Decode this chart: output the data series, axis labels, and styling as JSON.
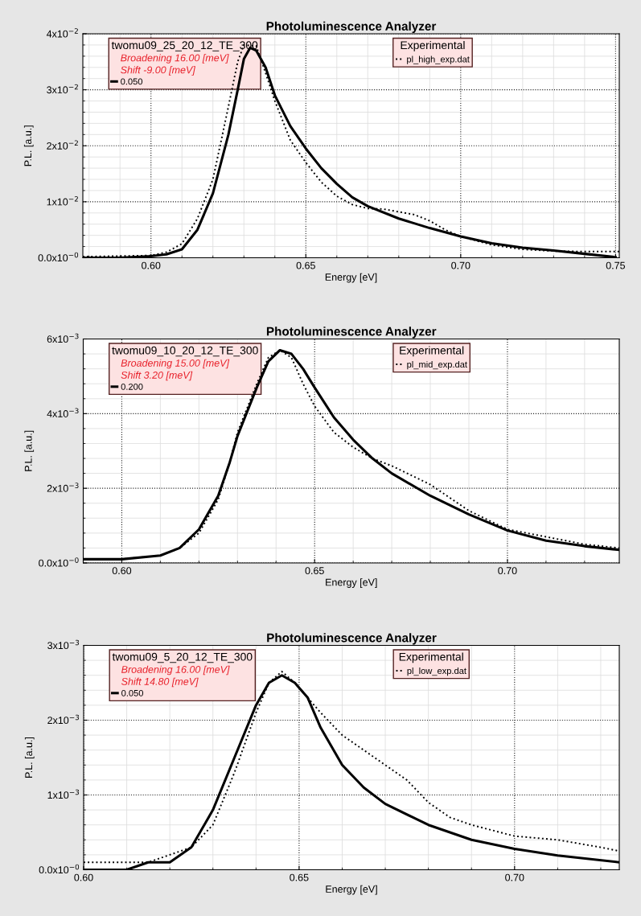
{
  "chart_data": [
    {
      "type": "line",
      "title": "Photoluminescence Analyzer",
      "xlabel": "Energy [eV]",
      "ylabel": "P.L. [a.u.]",
      "legend_title": "Experimental",
      "annotations": [
        "twomu09_25_20_12_TE_300",
        "Broadening 16.00 [meV]",
        "Shift -9.00 [meV]"
      ],
      "xlim": [
        0.578,
        0.7512
      ],
      "ylim": [
        0,
        0.04
      ],
      "xticks": [
        {
          "value": 0.6,
          "label": "0.60"
        },
        {
          "value": 0.65,
          "label": "0.65"
        },
        {
          "value": 0.7,
          "label": "0.70"
        },
        {
          "value": 0.75,
          "label": "0.75"
        }
      ],
      "yticks": [
        {
          "value": 0,
          "label": "0.0x10$^{−0}$"
        },
        {
          "value": 0.01,
          "label": "1x10$^{−2}$"
        },
        {
          "value": 0.02,
          "label": "2x10$^{−2}$"
        },
        {
          "value": 0.03,
          "label": "3x10$^{−2}$"
        },
        {
          "value": 0.04,
          "label": "4x10$^{−2}$"
        }
      ],
      "grid": true,
      "legend": "top",
      "series": [
        {
          "name": "0.050",
          "color": "#000000",
          "line_style": "solid",
          "x": [
            0.578,
            0.59,
            0.6,
            0.605,
            0.61,
            0.615,
            0.62,
            0.625,
            0.628,
            0.63,
            0.632,
            0.634,
            0.637,
            0.64,
            0.645,
            0.65,
            0.655,
            0.66,
            0.665,
            0.67,
            0.68,
            0.69,
            0.7,
            0.71,
            0.72,
            0.73,
            0.74,
            0.75
          ],
          "values": [
            0,
            0,
            0.0003,
            0.0006,
            0.0015,
            0.005,
            0.0115,
            0.022,
            0.03,
            0.0355,
            0.0375,
            0.037,
            0.034,
            0.029,
            0.0235,
            0.0195,
            0.016,
            0.0132,
            0.0108,
            0.0092,
            0.007,
            0.0053,
            0.0038,
            0.0026,
            0.0018,
            0.0013,
            0.0007,
            0.0001
          ]
        },
        {
          "name": "pl_high_exp.dat",
          "color": "#000000",
          "line_style": "dotted",
          "x": [
            0.578,
            0.6,
            0.605,
            0.61,
            0.615,
            0.62,
            0.625,
            0.628,
            0.63,
            0.634,
            0.637,
            0.64,
            0.645,
            0.65,
            0.655,
            0.66,
            0.665,
            0.67,
            0.675,
            0.68,
            0.685,
            0.69,
            0.695,
            0.7,
            0.71,
            0.72,
            0.73,
            0.74,
            0.7512
          ],
          "values": [
            0.0002,
            0.0004,
            0.001,
            0.0025,
            0.007,
            0.014,
            0.027,
            0.035,
            0.038,
            0.0378,
            0.033,
            0.028,
            0.021,
            0.017,
            0.0135,
            0.011,
            0.0095,
            0.0088,
            0.0087,
            0.0082,
            0.0077,
            0.0066,
            0.005,
            0.0038,
            0.0023,
            0.0015,
            0.0012,
            0.0011,
            0.0011
          ]
        }
      ]
    },
    {
      "type": "line",
      "title": "Photoluminescence Analyzer",
      "xlabel": "Energy [eV]",
      "ylabel": "P.L. [a.u.]",
      "legend_title": "Experimental",
      "annotations": [
        "twomu09_10_20_12_TE_300",
        "Broadening 15.00 [meV]",
        "Shift 3.20 [meV]"
      ],
      "xlim": [
        0.59,
        0.729
      ],
      "ylim": [
        0,
        0.006
      ],
      "xticks": [
        {
          "value": 0.6,
          "label": "0.60"
        },
        {
          "value": 0.65,
          "label": "0.65"
        },
        {
          "value": 0.7,
          "label": "0.70"
        }
      ],
      "yticks": [
        {
          "value": 0,
          "label": "0.0x10$^{−0}$"
        },
        {
          "value": 0.002,
          "label": "2x10$^{−3}$"
        },
        {
          "value": 0.004,
          "label": "4x10$^{−3}$"
        },
        {
          "value": 0.006,
          "label": "6x10$^{−3}$"
        }
      ],
      "grid": true,
      "legend": "top",
      "series": [
        {
          "name": "0.200",
          "color": "#000000",
          "line_style": "solid",
          "x": [
            0.59,
            0.6,
            0.61,
            0.615,
            0.62,
            0.625,
            0.628,
            0.63,
            0.635,
            0.638,
            0.641,
            0.644,
            0.647,
            0.65,
            0.655,
            0.66,
            0.665,
            0.67,
            0.68,
            0.69,
            0.7,
            0.71,
            0.72,
            0.729
          ],
          "values": [
            0.0001,
            0.0001,
            0.0002,
            0.0004,
            0.0009,
            0.0018,
            0.0027,
            0.0034,
            0.0047,
            0.0054,
            0.0057,
            0.0056,
            0.0052,
            0.0047,
            0.0039,
            0.0033,
            0.0028,
            0.0024,
            0.0018,
            0.0013,
            0.00087,
            0.0006,
            0.00045,
            0.00035
          ]
        },
        {
          "name": "pl_mid_exp.dat",
          "color": "#000000",
          "line_style": "dotted",
          "x": [
            0.59,
            0.6,
            0.61,
            0.615,
            0.62,
            0.625,
            0.628,
            0.63,
            0.635,
            0.638,
            0.641,
            0.644,
            0.647,
            0.65,
            0.655,
            0.66,
            0.665,
            0.67,
            0.68,
            0.69,
            0.7,
            0.71,
            0.72,
            0.729
          ],
          "values": [
            0.0001,
            0.0001,
            0.0002,
            0.0004,
            0.0008,
            0.0017,
            0.0027,
            0.0035,
            0.0048,
            0.0055,
            0.0057,
            0.0055,
            0.0048,
            0.0042,
            0.0035,
            0.0031,
            0.0028,
            0.0026,
            0.0021,
            0.0014,
            0.0009,
            0.0007,
            0.0005,
            0.0004
          ]
        }
      ]
    },
    {
      "type": "line",
      "title": "Photoluminescence Analyzer",
      "xlabel": "Energy [eV]",
      "ylabel": "P.L. [a.u.]",
      "legend_title": "Experimental",
      "annotations": [
        "twomu09_5_20_12_TE_300",
        "Broadening 16.00 [meV]",
        "Shift 14.80 [meV]"
      ],
      "xlim": [
        0.6,
        0.7243
      ],
      "ylim": [
        0,
        0.003
      ],
      "xticks": [
        {
          "value": 0.6,
          "label": "0.60"
        },
        {
          "value": 0.65,
          "label": "0.65"
        },
        {
          "value": 0.7,
          "label": "0.70"
        }
      ],
      "yticks": [
        {
          "value": 0,
          "label": "0.0x10$^{−0}$"
        },
        {
          "value": 0.001,
          "label": "1x10$^{−3}$"
        },
        {
          "value": 0.002,
          "label": "2x10$^{−3}$"
        },
        {
          "value": 0.003,
          "label": "3x10$^{−3}$"
        }
      ],
      "grid": true,
      "legend": "top",
      "series": [
        {
          "name": "0.050",
          "color": "#000000",
          "line_style": "solid",
          "x": [
            0.6,
            0.61,
            0.615,
            0.62,
            0.625,
            0.63,
            0.635,
            0.64,
            0.643,
            0.646,
            0.649,
            0.652,
            0.655,
            0.66,
            0.665,
            0.67,
            0.68,
            0.69,
            0.7,
            0.71,
            0.7243
          ],
          "values": [
            0,
            0,
            0.0001,
            0.0001,
            0.0003,
            0.0008,
            0.0015,
            0.0022,
            0.0025,
            0.0026,
            0.0025,
            0.0023,
            0.0019,
            0.0014,
            0.0011,
            0.00088,
            0.0006,
            0.0004,
            0.00028,
            0.00019,
            0.0001
          ]
        },
        {
          "name": "pl_low_exp.dat",
          "color": "#000000",
          "line_style": "dotted",
          "x": [
            0.6,
            0.605,
            0.61,
            0.615,
            0.62,
            0.625,
            0.63,
            0.635,
            0.64,
            0.643,
            0.646,
            0.649,
            0.652,
            0.655,
            0.66,
            0.665,
            0.67,
            0.675,
            0.68,
            0.685,
            0.69,
            0.7,
            0.71,
            0.72,
            0.7243
          ],
          "values": [
            0.0001,
            0.0001,
            0.0001,
            0.0001,
            0.0002,
            0.0003,
            0.0006,
            0.0013,
            0.0021,
            0.0025,
            0.00265,
            0.0025,
            0.0023,
            0.0021,
            0.0018,
            0.0016,
            0.0014,
            0.0012,
            0.0009,
            0.0007,
            0.0006,
            0.00045,
            0.0004,
            0.0003,
            0.00025
          ]
        }
      ]
    }
  ]
}
